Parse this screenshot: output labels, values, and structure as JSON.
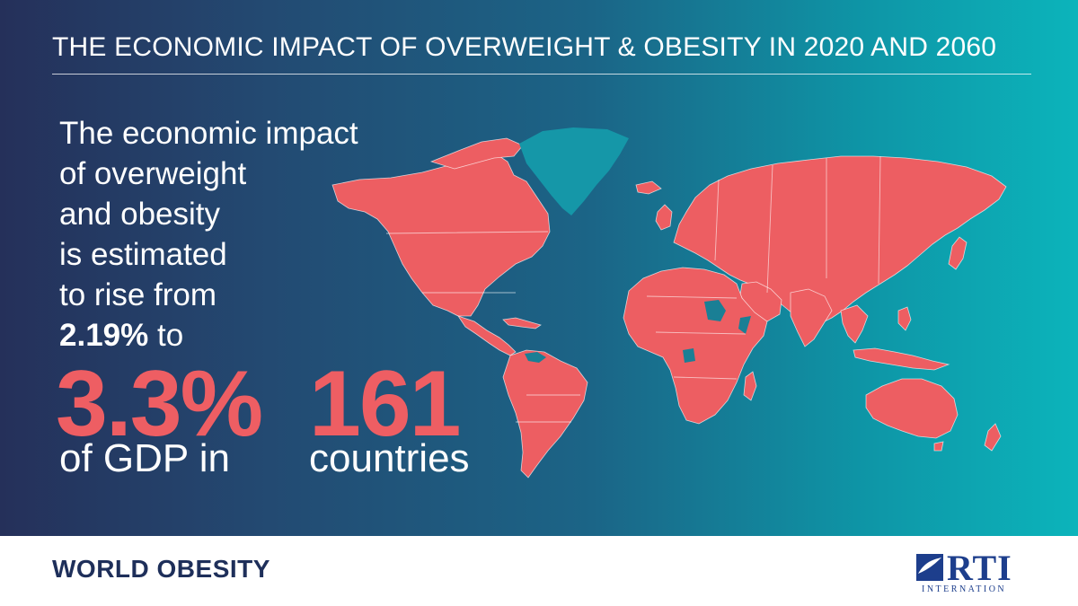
{
  "title": "THE ECONOMIC IMPACT OF OVERWEIGHT & OBESITY IN 2020 AND 2060",
  "lede": {
    "lines": [
      "The economic impact",
      "of overweight",
      "and obesity",
      "is estimated",
      "to rise from"
    ],
    "from_value": "2.19%",
    "to_word": " to"
  },
  "headline": {
    "gdp_value": "3.3%",
    "gdp_label": "of GDP in",
    "country_count": "161",
    "country_label": "countries"
  },
  "footer": {
    "left_logo_text": "WORLD OBESITY",
    "right_logo_text": "RTI",
    "right_logo_sub": "INTERNATION"
  },
  "colors": {
    "accent": "#ee5e63",
    "map_fill": "#ed5e62",
    "greenland_fill": "#1597a8",
    "logo_navy": "#1e2f5a",
    "rti_blue": "#1d3e8c"
  }
}
